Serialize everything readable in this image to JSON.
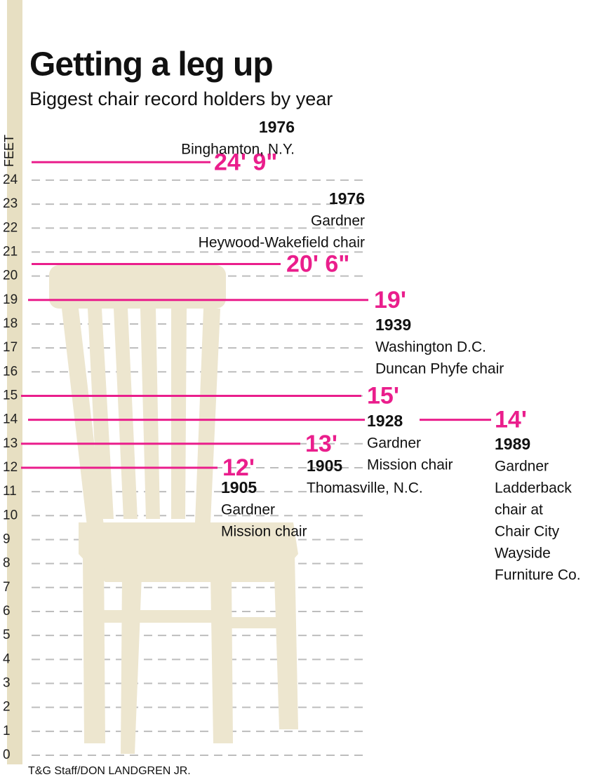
{
  "chart_data": {
    "type": "level",
    "title": "Getting a leg up",
    "subtitle": "Biggest chair record holders by year",
    "y_label": "FEET",
    "credit": "T&G Staff/DON LANDGREN JR.",
    "ylim": [
      0,
      26
    ],
    "yticks": [
      0,
      1,
      2,
      3,
      4,
      5,
      6,
      7,
      8,
      9,
      10,
      11,
      12,
      13,
      14,
      15,
      16,
      17,
      18,
      19,
      20,
      21,
      22,
      23,
      24
    ],
    "grid": true,
    "color": "#ea1e8c",
    "records": [
      {
        "value": 24.75,
        "value_label": "24' 9\"",
        "year": "1976",
        "description": [
          "Binghamton, N.Y."
        ]
      },
      {
        "value": 20.5,
        "value_label": "20' 6\"",
        "year": "1976",
        "description": [
          "Gardner",
          "Heywood-Wakefield chair"
        ]
      },
      {
        "value": 19,
        "value_label": "19'",
        "year": "1939",
        "description": [
          "Washington D.C.",
          "Duncan Phyfe chair"
        ]
      },
      {
        "value": 15,
        "value_label": "15'",
        "year": "1928",
        "description": [
          "Gardner",
          "Mission chair"
        ]
      },
      {
        "value": 14,
        "value_label": "14'",
        "year": "1989",
        "description": [
          "Gardner",
          "Ladderback",
          "chair at",
          "Chair City",
          "Wayside",
          "Furniture Co."
        ]
      },
      {
        "value": 13,
        "value_label": "13'",
        "year": "1905",
        "description": [
          "Thomasville, N.C."
        ]
      },
      {
        "value": 12,
        "value_label": "12'",
        "year": "1905",
        "description": [
          "Gardner",
          "Mission chair"
        ]
      }
    ]
  }
}
